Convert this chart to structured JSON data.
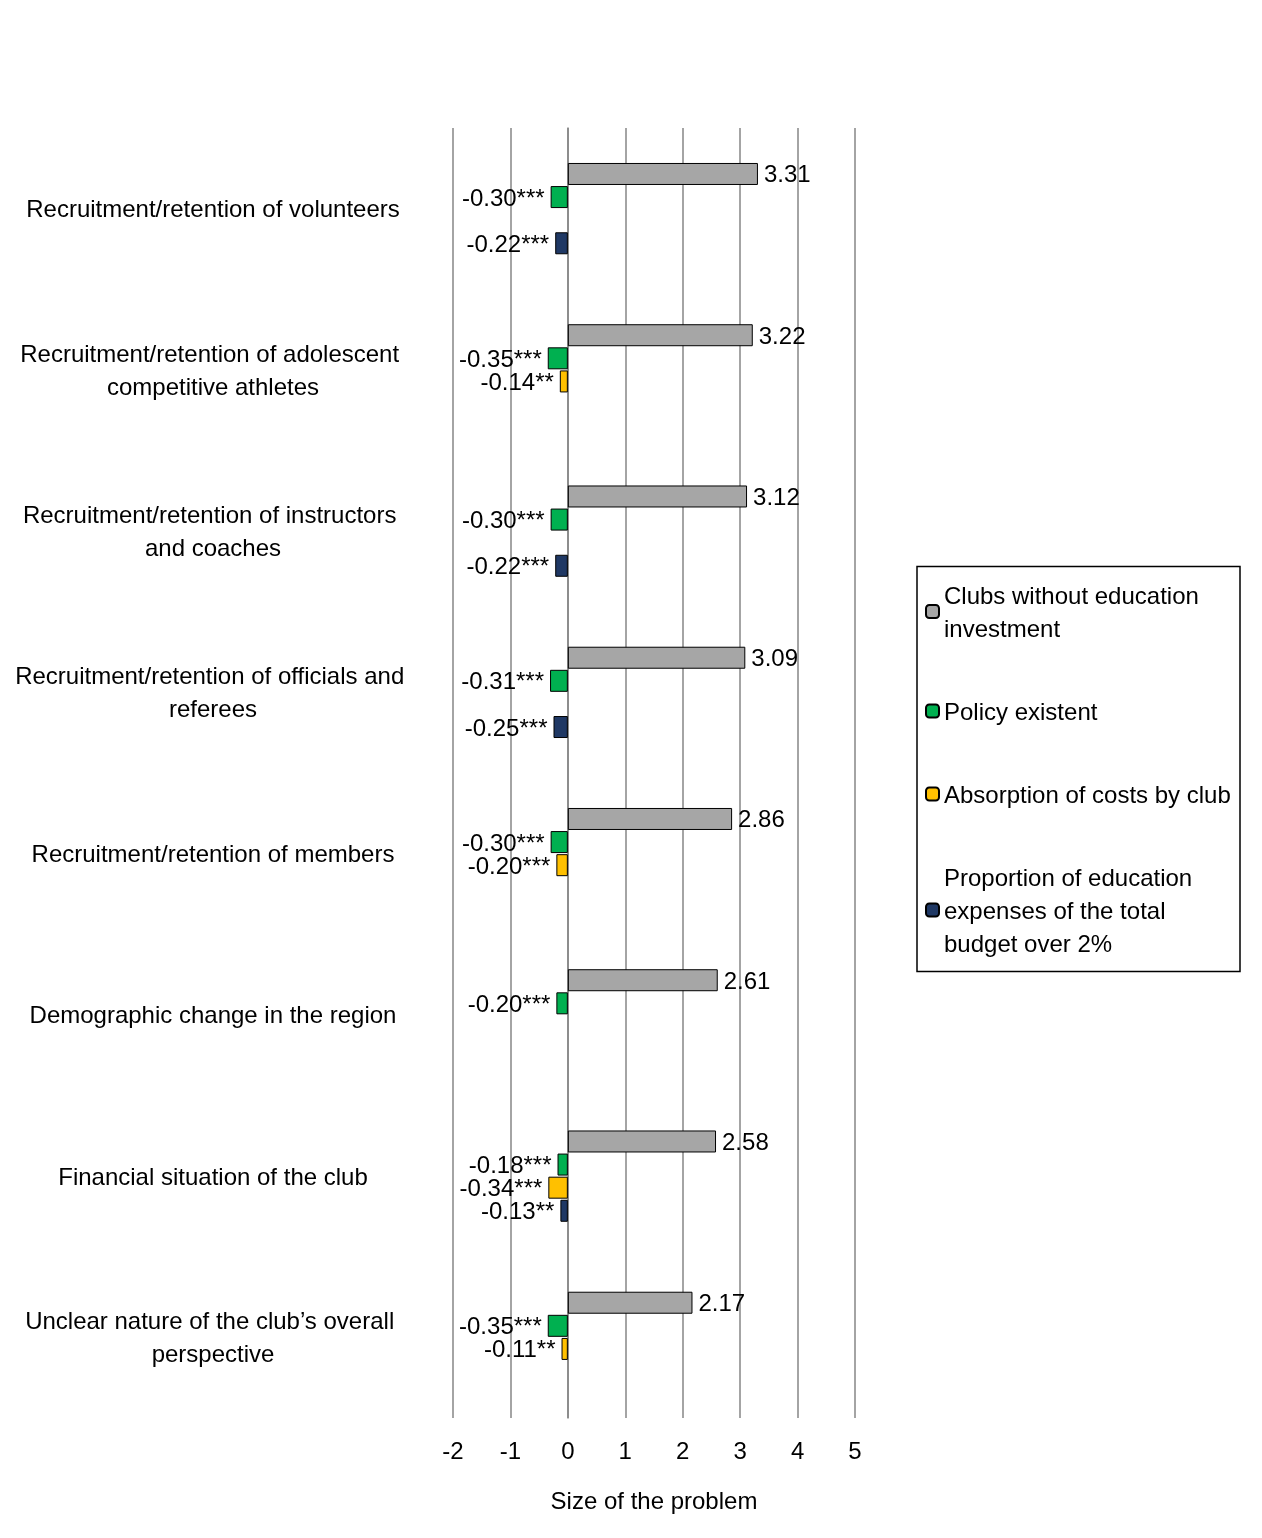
{
  "chart_data": {
    "type": "bar",
    "orientation": "horizontal",
    "xlabel": "Size of the problem",
    "categories": [
      "Recruitment/retention of volunteers",
      "Recruitment/retention of adolescent competitive athletes",
      "Recruitment/retention of instructors and coaches",
      "Recruitment/retention of officials and referees",
      "Recruitment/retention of members",
      "Demographic change in the region",
      "Financial situation of the club",
      "Unclear nature of the club’s overall perspective"
    ],
    "series": [
      {
        "name": "Clubs without education investment",
        "color": "#a6a6a6",
        "values": [
          3.31,
          3.22,
          3.12,
          3.09,
          2.86,
          2.61,
          2.58,
          2.17
        ],
        "value_labels": [
          "3.31",
          "3.22",
          "3.12",
          "3.09",
          "2.86",
          "2.61",
          "2.58",
          "2.17"
        ]
      },
      {
        "name": "Policy existent",
        "color": "#00b050",
        "values": [
          -0.3,
          -0.35,
          -0.3,
          -0.31,
          -0.3,
          -0.2,
          -0.18,
          -0.35
        ],
        "value_labels": [
          "-0.30***",
          "-0.35***",
          "-0.30***",
          "-0.31***",
          "-0.30***",
          "-0.20***",
          "-0.18***",
          "-0.35***"
        ]
      },
      {
        "name": "Absorption of costs by club",
        "color": "#ffc000",
        "values": [
          null,
          -0.14,
          null,
          null,
          -0.2,
          null,
          -0.34,
          -0.11
        ],
        "value_labels": [
          null,
          "-0.14**",
          null,
          null,
          "-0.20***",
          null,
          "-0.34***",
          "-0.11**"
        ]
      },
      {
        "name": "Proportion of education expenses of the total budget over 2%",
        "color": "#1f3864",
        "values": [
          -0.22,
          null,
          -0.22,
          -0.25,
          null,
          null,
          -0.13,
          null
        ],
        "value_labels": [
          "-0.22***",
          null,
          "-0.22***",
          "-0.25***",
          null,
          null,
          "-0.13**",
          null
        ]
      }
    ],
    "xlim": [
      -2,
      5
    ],
    "xticks": [
      -2,
      -1,
      0,
      1,
      2,
      3,
      4,
      5
    ],
    "grid": "x",
    "legend": "right"
  }
}
